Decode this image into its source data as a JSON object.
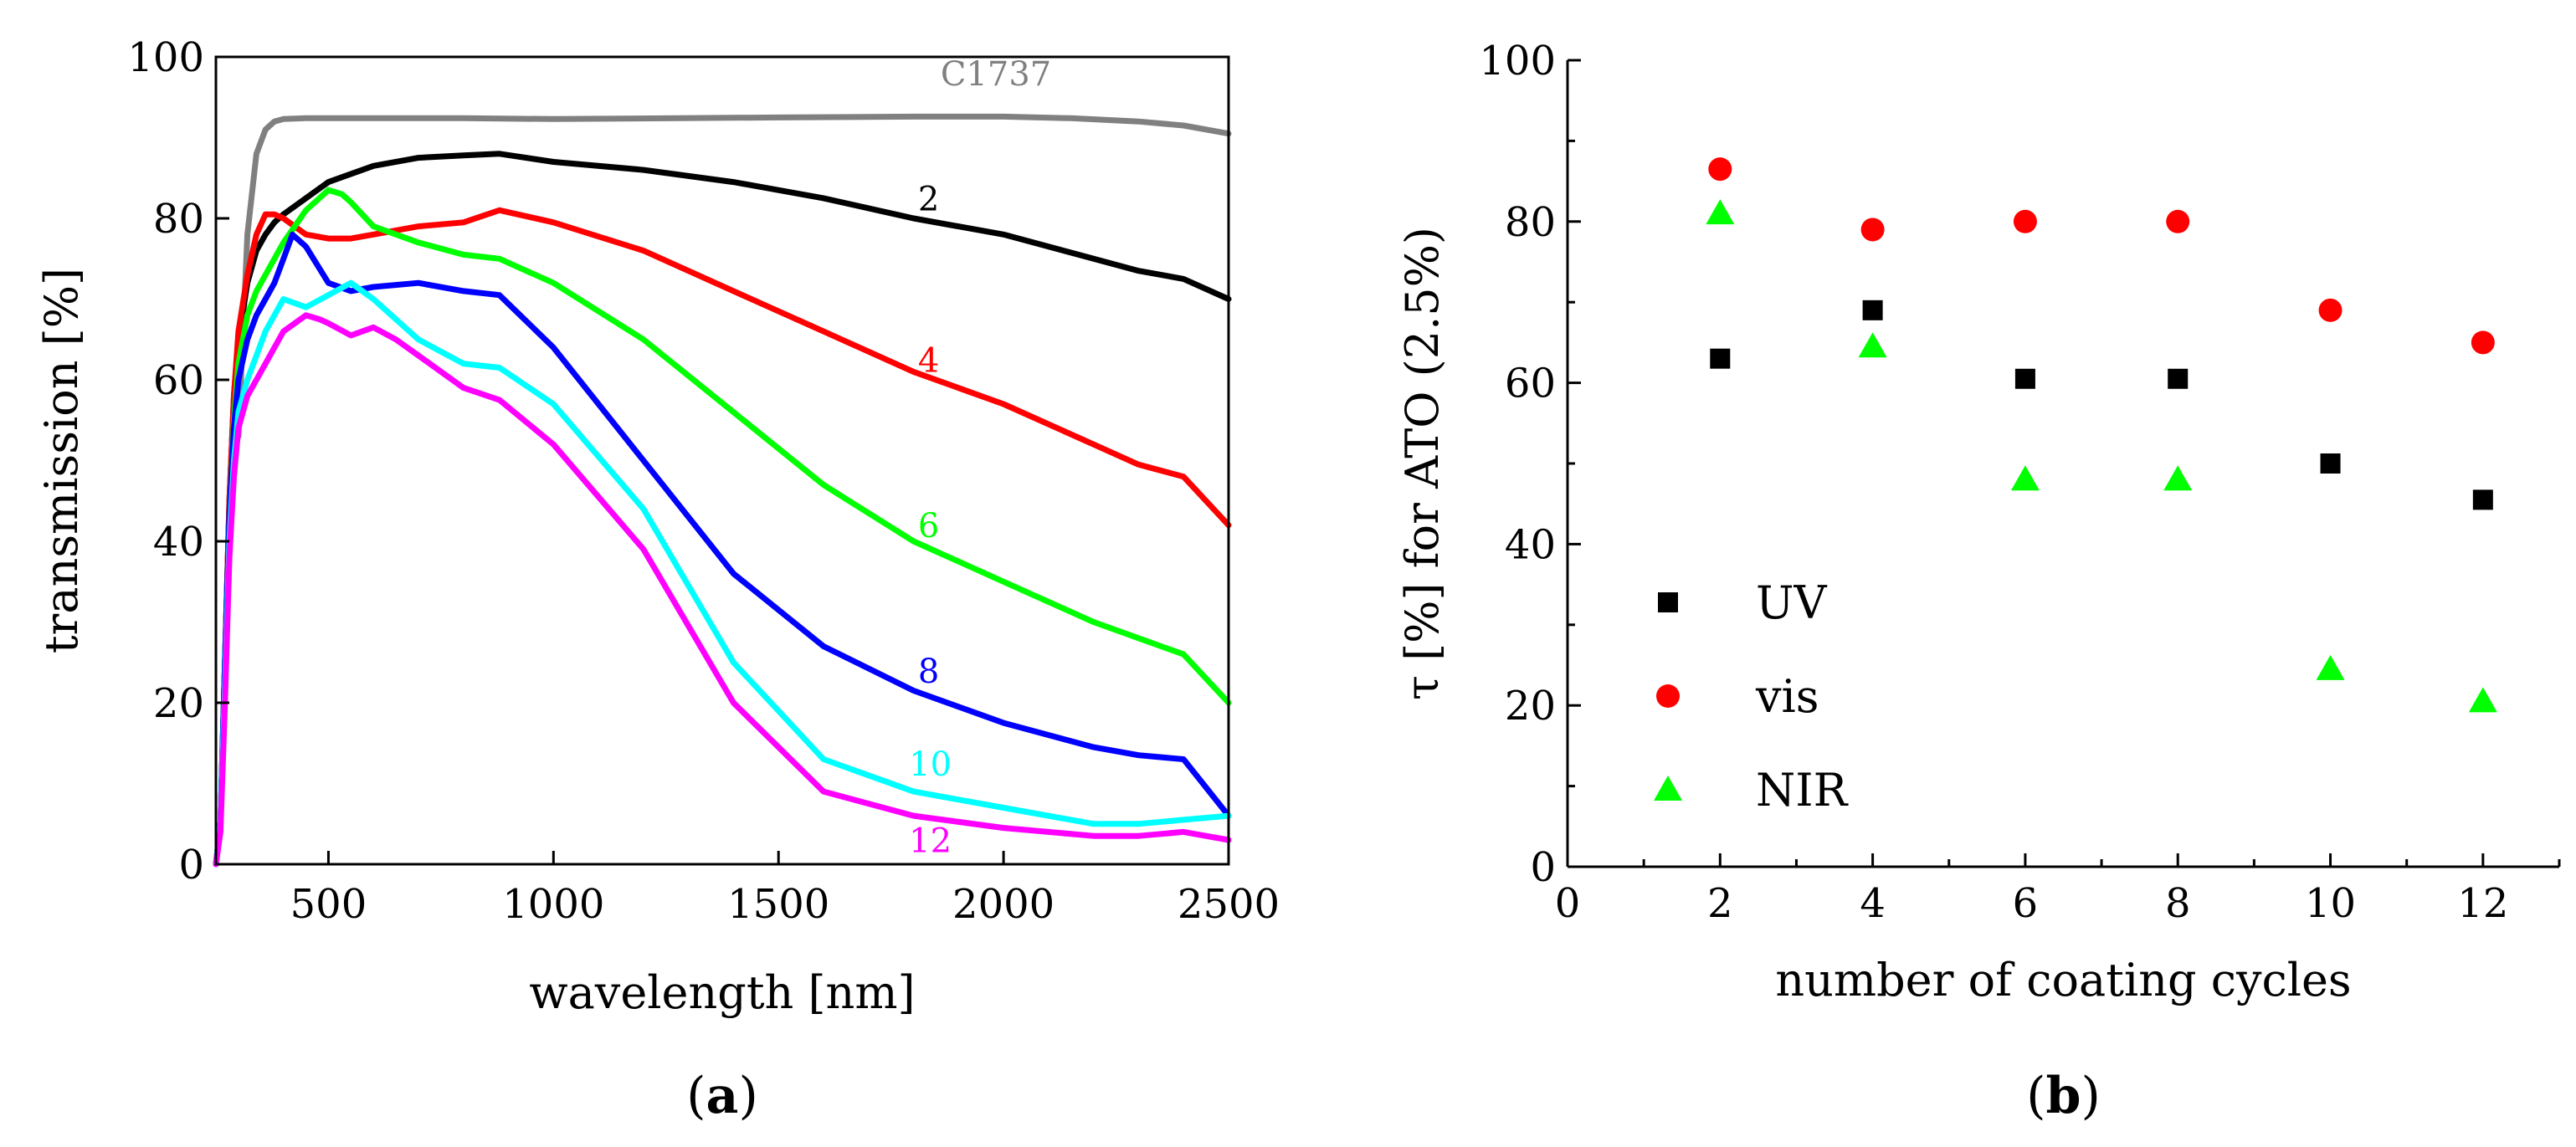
{
  "chart_data": [
    {
      "panel": "a",
      "type": "line",
      "panel_label_prefix": "(",
      "panel_letter": "a",
      "panel_label_suffix": ")",
      "xlabel": "wavelength [nm]",
      "ylabel": "transmission [%]",
      "xlim": [
        250,
        2500
      ],
      "ylim": [
        0,
        100
      ],
      "xticks": [
        500,
        1000,
        1500,
        2000,
        2500
      ],
      "yticks": [
        0,
        20,
        40,
        60,
        80,
        100
      ],
      "grid": false,
      "series": [
        {
          "name": "C1737",
          "label": "C1737",
          "color": "#808080",
          "label_at": [
            1860,
            96.5
          ],
          "x": [
            300,
            320,
            340,
            360,
            380,
            400,
            450,
            500,
            600,
            800,
            1000,
            1500,
            1800,
            2000,
            2150,
            2300,
            2400,
            2500
          ],
          "y": [
            53,
            78,
            88,
            91,
            92,
            92.3,
            92.4,
            92.4,
            92.4,
            92.4,
            92.3,
            92.5,
            92.6,
            92.6,
            92.4,
            92,
            91.5,
            90.5
          ]
        },
        {
          "name": "2",
          "label": "2",
          "color": "#000000",
          "label_at": [
            1810,
            81
          ],
          "x": [
            250,
            260,
            270,
            280,
            290,
            300,
            320,
            340,
            360,
            380,
            400,
            450,
            500,
            600,
            700,
            800,
            880,
            1000,
            1200,
            1400,
            1600,
            1800,
            2000,
            2200,
            2300,
            2400,
            2500
          ],
          "y": [
            0,
            5,
            25,
            45,
            58,
            65,
            72,
            76,
            78,
            79.5,
            80.5,
            82.5,
            84.5,
            86.5,
            87.5,
            87.8,
            88,
            87,
            86,
            84.5,
            82.5,
            80,
            78,
            75,
            73.5,
            72.5,
            70
          ]
        },
        {
          "name": "4",
          "label": "4",
          "color": "#ff0000",
          "label_at": [
            1810,
            61
          ],
          "x": [
            250,
            260,
            270,
            280,
            290,
            300,
            320,
            340,
            360,
            380,
            400,
            450,
            500,
            550,
            600,
            700,
            800,
            880,
            1000,
            1200,
            1400,
            1600,
            1800,
            2000,
            2200,
            2300,
            2400,
            2500
          ],
          "y": [
            0,
            5,
            25,
            45,
            58,
            66,
            73,
            78,
            80.5,
            80.5,
            80,
            78,
            77.5,
            77.5,
            78,
            79,
            79.5,
            81,
            79.5,
            76,
            71,
            66,
            61,
            57,
            52,
            49.5,
            48,
            42
          ]
        },
        {
          "name": "6",
          "label": "6",
          "color": "#00ff00",
          "label_at": [
            1810,
            40.5
          ],
          "x": [
            250,
            260,
            270,
            280,
            290,
            300,
            320,
            340,
            360,
            380,
            400,
            450,
            500,
            530,
            550,
            600,
            700,
            800,
            880,
            1000,
            1200,
            1400,
            1600,
            1800,
            2000,
            2200,
            2300,
            2400,
            2500
          ],
          "y": [
            0,
            5,
            25,
            43,
            55,
            62,
            68,
            71,
            73,
            75,
            77,
            81,
            83.5,
            83,
            82,
            79,
            77,
            75.5,
            75,
            72,
            65,
            56,
            47,
            40,
            35,
            30,
            28,
            26,
            20
          ]
        },
        {
          "name": "8",
          "label": "8",
          "color": "#0000ff",
          "label_at": [
            1810,
            22.5
          ],
          "x": [
            250,
            260,
            270,
            280,
            290,
            300,
            320,
            340,
            360,
            380,
            400,
            420,
            450,
            500,
            550,
            600,
            700,
            800,
            880,
            1000,
            1200,
            1400,
            1600,
            1800,
            2000,
            2200,
            2300,
            2400,
            2500
          ],
          "y": [
            0,
            5,
            25,
            43,
            54,
            60,
            65,
            68,
            70,
            72,
            75,
            78,
            76.5,
            72,
            71,
            71.5,
            72,
            71,
            70.5,
            64,
            50,
            36,
            27,
            21.5,
            17.5,
            14.5,
            13.5,
            13,
            6
          ]
        },
        {
          "name": "10",
          "label": "10",
          "color": "#00ffff",
          "label_at": [
            1790,
            11
          ],
          "x": [
            250,
            260,
            270,
            280,
            290,
            300,
            320,
            340,
            360,
            380,
            400,
            450,
            500,
            550,
            600,
            700,
            800,
            880,
            1000,
            1200,
            1400,
            1600,
            1800,
            2000,
            2200,
            2300,
            2400,
            2500
          ],
          "y": [
            0,
            5,
            22,
            40,
            50,
            56,
            60,
            63,
            66,
            68,
            70,
            69,
            70.5,
            72,
            70,
            65,
            62,
            61.5,
            57,
            44,
            25,
            13,
            9,
            7,
            5,
            5,
            5.5,
            6
          ]
        },
        {
          "name": "12",
          "label": "12",
          "color": "#ff00ff",
          "label_at": [
            1790,
            1.5
          ],
          "x": [
            250,
            260,
            270,
            280,
            290,
            300,
            320,
            340,
            360,
            380,
            400,
            450,
            480,
            500,
            550,
            600,
            650,
            700,
            800,
            880,
            1000,
            1200,
            1400,
            1600,
            1800,
            2000,
            2200,
            2300,
            2400,
            2500
          ],
          "y": [
            0,
            4,
            20,
            38,
            48,
            54,
            58,
            60,
            62,
            64,
            66,
            68,
            67.5,
            67,
            65.5,
            66.5,
            65,
            63,
            59,
            57.5,
            52,
            39,
            20,
            9,
            6,
            4.5,
            3.5,
            3.5,
            4,
            3
          ]
        }
      ]
    },
    {
      "panel": "b",
      "type": "scatter",
      "panel_label_prefix": "(",
      "panel_letter": "b",
      "panel_label_suffix": ")",
      "xlabel": "number of coating cycles",
      "ylabel": "τ [%] for ATO (2.5%)",
      "xlim": [
        0,
        13
      ],
      "ylim": [
        0,
        100
      ],
      "xticks": [
        0,
        2,
        4,
        6,
        8,
        10,
        12
      ],
      "yticks": [
        0,
        20,
        40,
        60,
        80,
        100
      ],
      "grid": false,
      "legend": "center-left",
      "series": [
        {
          "name": "UV",
          "label": "UV",
          "marker": "square",
          "color": "#000000",
          "x": [
            2,
            4,
            6,
            8,
            10,
            12
          ],
          "y": [
            63,
            69,
            60.5,
            60.5,
            50,
            45.5
          ]
        },
        {
          "name": "vis",
          "label": "vis",
          "marker": "circle",
          "color": "#ff0000",
          "x": [
            2,
            4,
            6,
            8,
            10,
            12
          ],
          "y": [
            86.5,
            79,
            80,
            80,
            69,
            65
          ]
        },
        {
          "name": "NIR",
          "label": "NIR",
          "marker": "triangle",
          "color": "#00ff00",
          "x": [
            2,
            4,
            6,
            8,
            10,
            12
          ],
          "y": [
            81,
            64.5,
            48,
            48,
            24.5,
            20.5
          ]
        }
      ]
    }
  ]
}
